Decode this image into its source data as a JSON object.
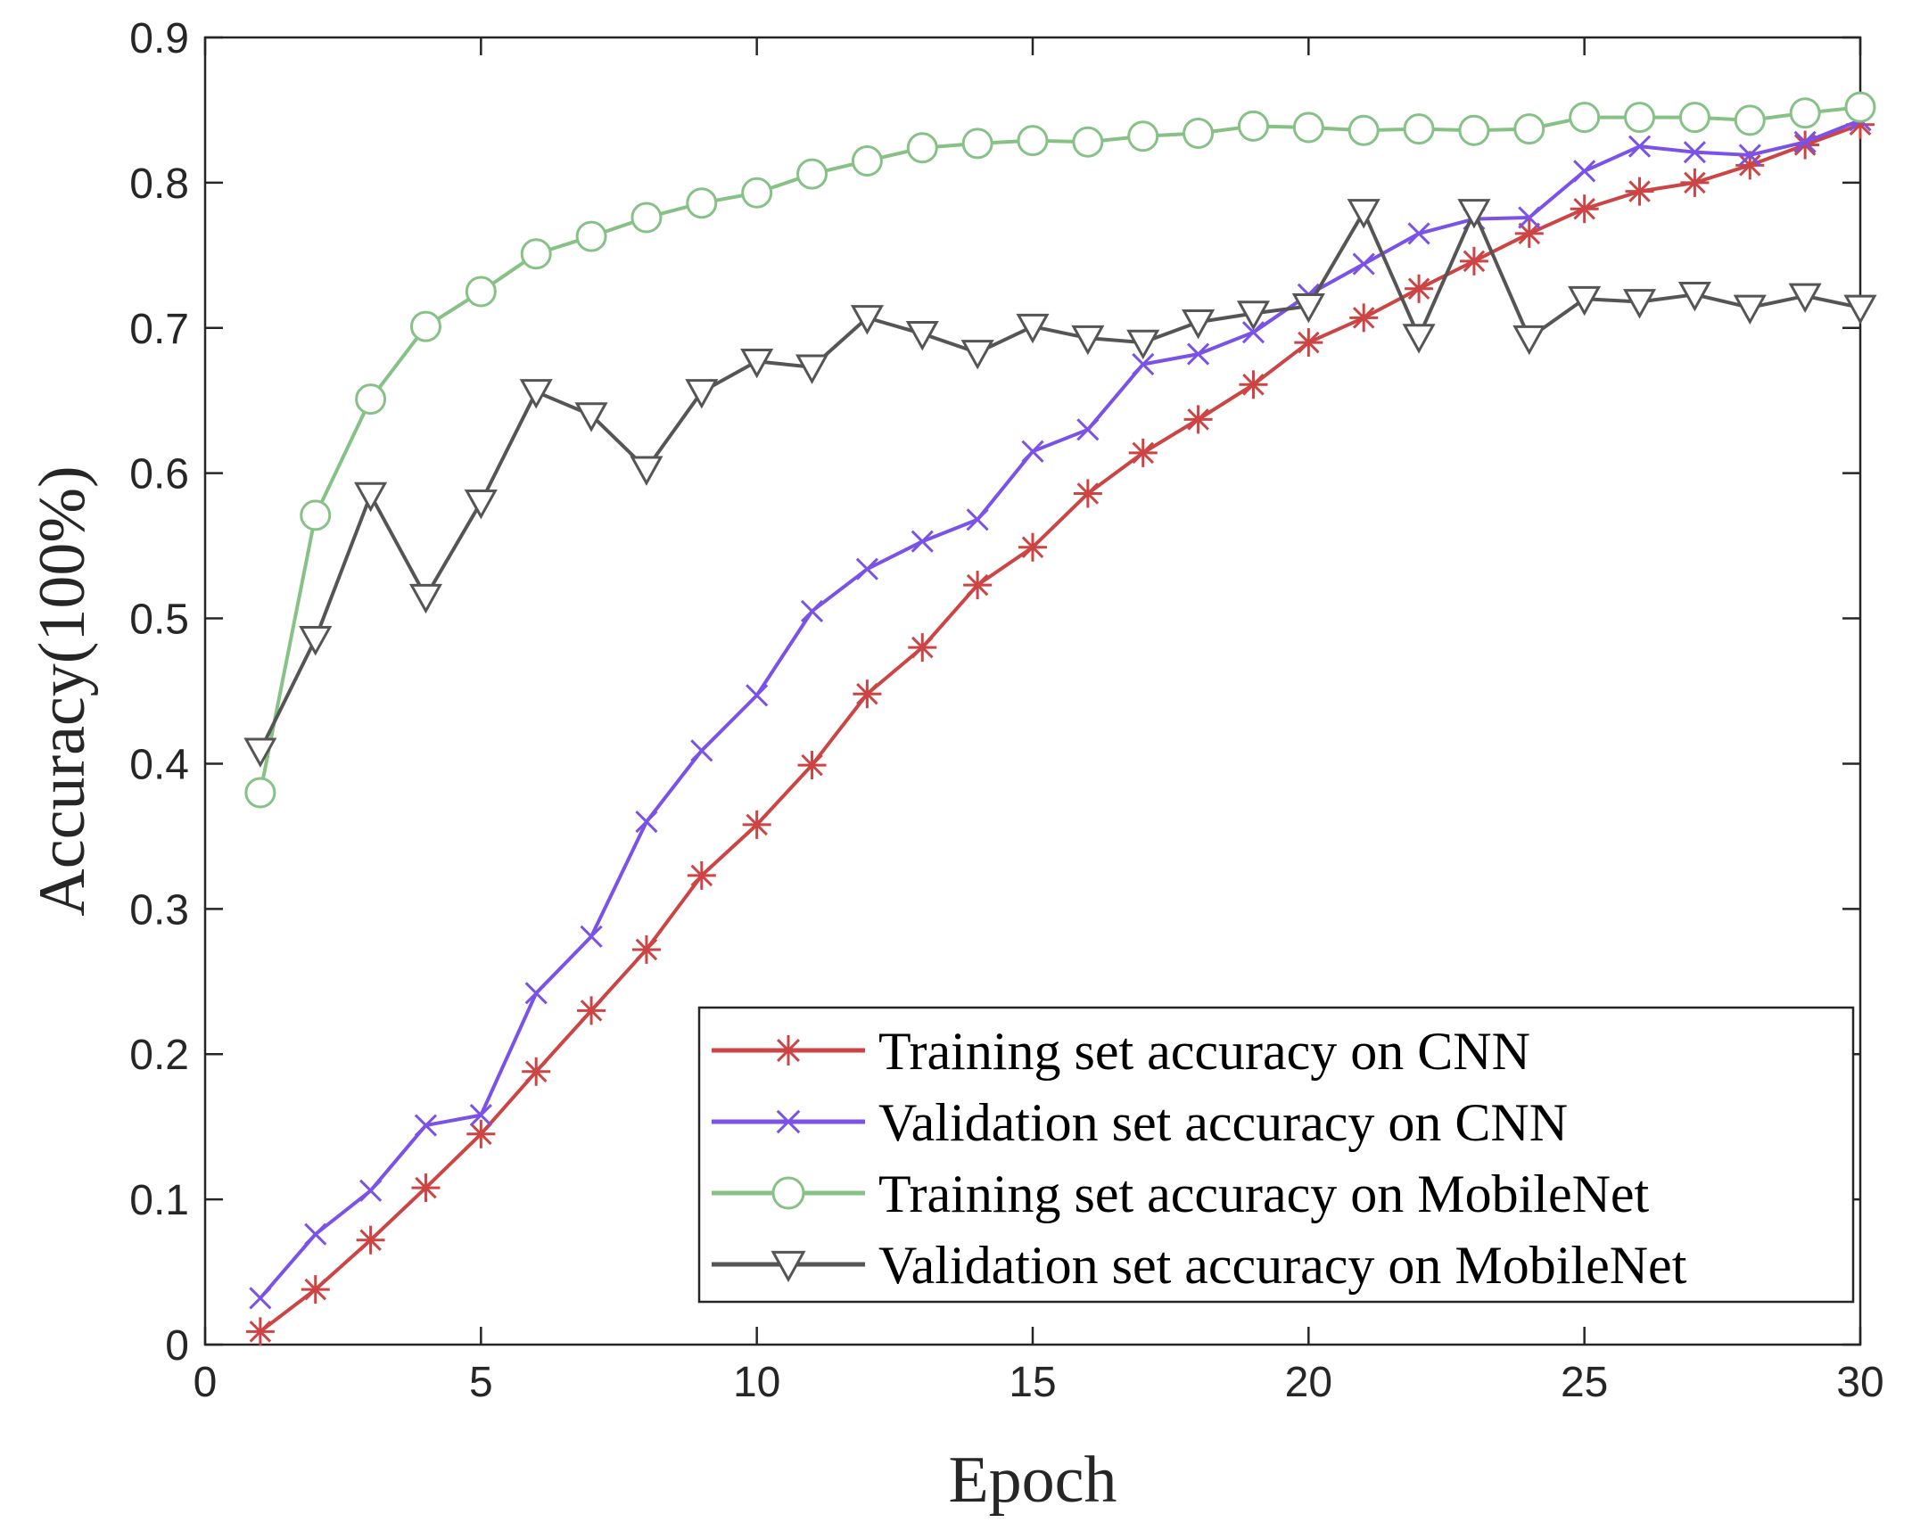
{
  "chart_data": {
    "type": "line",
    "title": "",
    "xlabel": "Epoch",
    "ylabel": "Accuracy(100%)",
    "xlim": [
      0,
      30
    ],
    "ylim": [
      0,
      0.9
    ],
    "xticks": [
      "0",
      "5",
      "10",
      "15",
      "20",
      "25",
      "30"
    ],
    "xtick_values": [
      0,
      5,
      10,
      15,
      20,
      25,
      30
    ],
    "yticks": [
      "0",
      "0.1",
      "0.2",
      "0.3",
      "0.4",
      "0.5",
      "0.6",
      "0.7",
      "0.8",
      "0.9"
    ],
    "ytick_values": [
      0,
      0.1,
      0.2,
      0.3,
      0.4,
      0.5,
      0.6,
      0.7,
      0.8,
      0.9
    ],
    "grid": false,
    "legend_position": "bottom-right",
    "x": [
      1,
      2,
      3,
      4,
      5,
      6,
      7,
      8,
      9,
      10,
      11,
      12,
      13,
      14,
      15,
      16,
      17,
      18,
      19,
      20,
      21,
      22,
      23,
      24,
      25,
      26,
      27,
      28,
      29,
      30
    ],
    "series": [
      {
        "name": "Training set accuracy on CNN",
        "color": "#cc4444",
        "marker": "asterisk",
        "values": [
          0.009,
          0.038,
          0.072,
          0.108,
          0.145,
          0.188,
          0.23,
          0.272,
          0.323,
          0.358,
          0.399,
          0.448,
          0.48,
          0.523,
          0.549,
          0.586,
          0.614,
          0.637,
          0.661,
          0.69,
          0.707,
          0.727,
          0.746,
          0.765,
          0.782,
          0.794,
          0.8,
          0.812,
          0.826,
          0.84
        ]
      },
      {
        "name": "Validation set accuracy on CNN",
        "color": "#7b52e8",
        "marker": "x",
        "values": [
          0.032,
          0.076,
          0.106,
          0.151,
          0.158,
          0.242,
          0.281,
          0.36,
          0.409,
          0.447,
          0.505,
          0.534,
          0.553,
          0.568,
          0.615,
          0.63,
          0.675,
          0.682,
          0.697,
          0.723,
          0.744,
          0.765,
          0.775,
          0.776,
          0.808,
          0.825,
          0.821,
          0.819,
          0.828,
          0.843
        ]
      },
      {
        "name": "Training set accuracy on MobileNet",
        "color": "#86c186",
        "marker": "circle",
        "values": [
          0.38,
          0.571,
          0.651,
          0.701,
          0.725,
          0.751,
          0.763,
          0.776,
          0.786,
          0.793,
          0.806,
          0.815,
          0.824,
          0.827,
          0.829,
          0.828,
          0.832,
          0.834,
          0.839,
          0.838,
          0.836,
          0.837,
          0.836,
          0.837,
          0.845,
          0.845,
          0.845,
          0.843,
          0.848,
          0.852
        ]
      },
      {
        "name": "Validation set accuracy on MobileNet",
        "color": "#555555",
        "marker": "triangle-down",
        "values": [
          0.409,
          0.486,
          0.585,
          0.515,
          0.58,
          0.656,
          0.64,
          0.603,
          0.656,
          0.677,
          0.673,
          0.707,
          0.696,
          0.683,
          0.701,
          0.693,
          0.69,
          0.704,
          0.71,
          0.715,
          0.78,
          0.694,
          0.78,
          0.693,
          0.72,
          0.718,
          0.723,
          0.714,
          0.722,
          0.714
        ]
      }
    ]
  }
}
